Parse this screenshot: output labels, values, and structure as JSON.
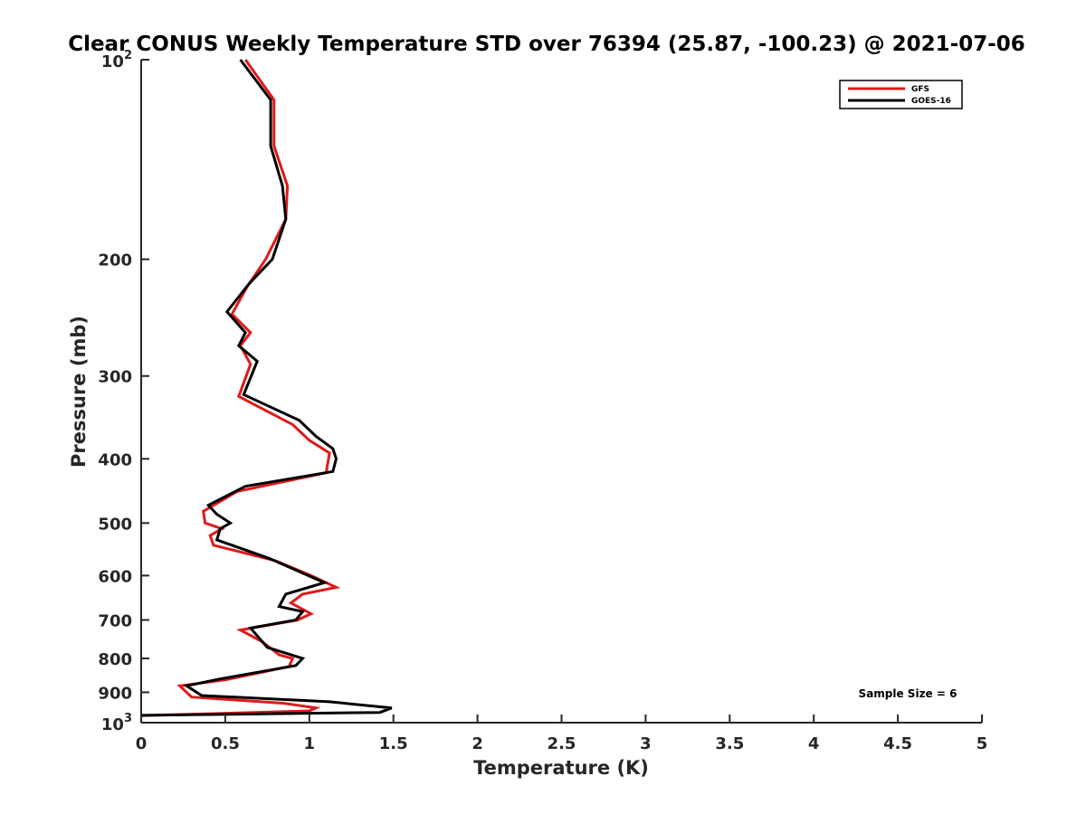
{
  "chart_data": {
    "type": "line",
    "title": "Clear CONUS Weekly Temperature STD over 76394 (25.87, -100.23) @ 2021-07-06",
    "xlabel": "Temperature (K)",
    "ylabel": "Pressure (mb)",
    "xlim": [
      0,
      5
    ],
    "ylim": [
      100,
      1000
    ],
    "yscale": "log",
    "y_reversed": true,
    "grid": false,
    "legend_position": "top-right",
    "x_ticks": [
      0,
      0.5,
      1,
      1.5,
      2,
      2.5,
      3,
      3.5,
      4,
      4.5,
      5
    ],
    "x_tick_labels": [
      "0",
      "0.5",
      "1",
      "1.5",
      "2",
      "2.5",
      "3",
      "3.5",
      "4",
      "4.5",
      "5"
    ],
    "y_ticks": [
      200,
      300,
      400,
      500,
      600,
      700,
      800,
      900
    ],
    "y_tick_labels": [
      "200",
      "300",
      "400",
      "500",
      "600",
      "700",
      "800",
      "900"
    ],
    "y_decade_ticks": [
      {
        "value": 100,
        "base": "10",
        "exp": "2"
      },
      {
        "value": 1000,
        "base": "10",
        "exp": "3"
      }
    ],
    "annotation": "Sample Size = 6",
    "series": [
      {
        "name": "GFS",
        "color": "#e0191a",
        "points": [
          [
            0.62,
            100
          ],
          [
            0.79,
            115
          ],
          [
            0.79,
            135
          ],
          [
            0.87,
            155
          ],
          [
            0.86,
            174
          ],
          [
            0.74,
            200
          ],
          [
            0.63,
            220
          ],
          [
            0.54,
            242
          ],
          [
            0.65,
            258
          ],
          [
            0.59,
            270
          ],
          [
            0.65,
            288
          ],
          [
            0.58,
            322
          ],
          [
            0.9,
            355
          ],
          [
            1.0,
            375
          ],
          [
            1.12,
            392
          ],
          [
            1.1,
            420
          ],
          [
            0.57,
            448
          ],
          [
            0.37,
            480
          ],
          [
            0.38,
            500
          ],
          [
            0.48,
            510
          ],
          [
            0.41,
            522
          ],
          [
            0.43,
            540
          ],
          [
            0.8,
            570
          ],
          [
            1.01,
            600
          ],
          [
            1.16,
            625
          ],
          [
            0.96,
            640
          ],
          [
            0.89,
            660
          ],
          [
            1.01,
            685
          ],
          [
            0.93,
            700
          ],
          [
            0.59,
            725
          ],
          [
            0.72,
            755
          ],
          [
            0.82,
            790
          ],
          [
            0.9,
            800
          ],
          [
            0.88,
            823
          ],
          [
            0.5,
            862
          ],
          [
            0.23,
            880
          ],
          [
            0.3,
            915
          ],
          [
            0.85,
            935
          ],
          [
            1.04,
            950
          ],
          [
            1.0,
            960
          ],
          [
            0.0,
            976
          ]
        ]
      },
      {
        "name": "GOES-16",
        "color": "#000000",
        "points": [
          [
            0.59,
            100
          ],
          [
            0.77,
            115
          ],
          [
            0.77,
            135
          ],
          [
            0.84,
            155
          ],
          [
            0.86,
            174
          ],
          [
            0.78,
            200
          ],
          [
            0.64,
            218
          ],
          [
            0.51,
            240
          ],
          [
            0.62,
            258
          ],
          [
            0.58,
            270
          ],
          [
            0.69,
            285
          ],
          [
            0.61,
            320
          ],
          [
            0.94,
            350
          ],
          [
            1.04,
            370
          ],
          [
            1.14,
            386
          ],
          [
            1.16,
            400
          ],
          [
            1.14,
            418
          ],
          [
            0.62,
            440
          ],
          [
            0.4,
            470
          ],
          [
            0.45,
            485
          ],
          [
            0.53,
            500
          ],
          [
            0.47,
            510
          ],
          [
            0.45,
            530
          ],
          [
            0.76,
            565
          ],
          [
            1.09,
            615
          ],
          [
            0.86,
            640
          ],
          [
            0.82,
            668
          ],
          [
            0.96,
            680
          ],
          [
            0.92,
            700
          ],
          [
            0.65,
            720
          ],
          [
            0.75,
            770
          ],
          [
            0.96,
            800
          ],
          [
            0.92,
            820
          ],
          [
            0.46,
            860
          ],
          [
            0.27,
            880
          ],
          [
            0.36,
            910
          ],
          [
            1.12,
            930
          ],
          [
            1.49,
            950
          ],
          [
            1.42,
            965
          ],
          [
            0.0,
            975
          ]
        ]
      }
    ]
  }
}
